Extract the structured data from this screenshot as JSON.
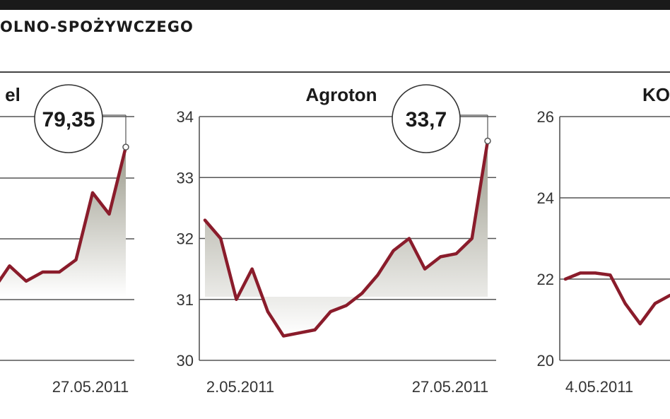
{
  "header": {
    "title": "OLNO-SPOŻYWCZEGO"
  },
  "colors": {
    "line": "#8a1c2b",
    "grid": "#555555",
    "fill_dark": "#9a998a",
    "fill_light": "#ffffff"
  },
  "chart_data": [
    {
      "type": "area",
      "title": "el",
      "ylim": [
        null,
        null
      ],
      "yticks": [],
      "date_labels": [
        "",
        "27.05.2011"
      ],
      "callout": "79,35",
      "series": [
        {
          "values": [
            -0.4,
            0.0,
            -0.25,
            -0.1,
            -0.1,
            0.1,
            1.2,
            0.85,
            1.95
          ]
        }
      ]
    },
    {
      "type": "area",
      "title": "Agroton",
      "ylim": [
        30,
        34
      ],
      "yticks": [
        "34",
        "33",
        "32",
        "31",
        "30"
      ],
      "date_labels": [
        "2.05.2011",
        "27.05.2011"
      ],
      "callout": "33,7",
      "series": [
        {
          "values": [
            32.3,
            32.0,
            31.0,
            31.5,
            30.8,
            30.4,
            30.45,
            30.5,
            30.8,
            30.9,
            31.1,
            31.4,
            31.8,
            32.0,
            31.5,
            31.7,
            31.75,
            32.0,
            33.6
          ]
        }
      ]
    },
    {
      "type": "line",
      "title": "KO",
      "ylim": [
        20,
        26
      ],
      "yticks": [
        "26",
        "24",
        "22",
        "20"
      ],
      "date_labels": [
        "4.05.2011",
        ""
      ],
      "callout": "",
      "series": [
        {
          "values": [
            22.0,
            22.15,
            22.15,
            22.1,
            21.4,
            20.9,
            21.4,
            21.6
          ]
        }
      ]
    }
  ]
}
